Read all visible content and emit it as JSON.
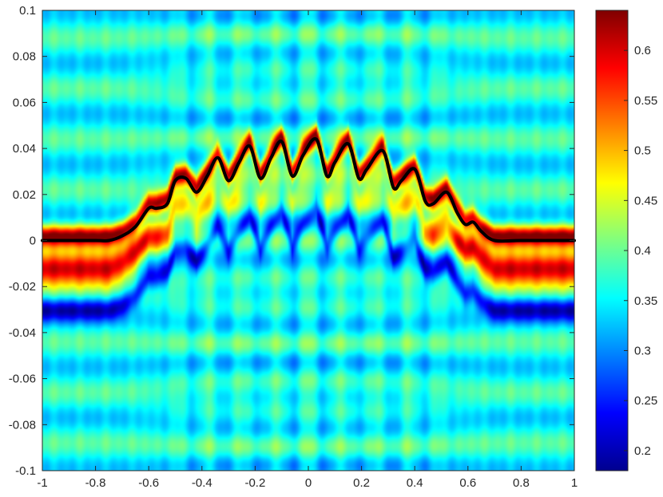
{
  "chart_data": {
    "type": "heatmap",
    "title": "",
    "xlabel": "",
    "ylabel": "",
    "xlim": [
      -1,
      1
    ],
    "ylim": [
      -0.1,
      0.1
    ],
    "x_ticks": [
      -1,
      -0.8,
      -0.6,
      -0.4,
      -0.2,
      0,
      0.2,
      0.4,
      0.6,
      0.8,
      1
    ],
    "x_tick_labels": [
      "-1",
      "-0.8",
      "-0.6",
      "-0.4",
      "-0.2",
      "0",
      "0.2",
      "0.4",
      "0.6",
      "0.8",
      "1"
    ],
    "y_ticks": [
      -0.1,
      -0.08,
      -0.06,
      -0.04,
      -0.02,
      0,
      0.02,
      0.04,
      0.06,
      0.08,
      0.1
    ],
    "y_tick_labels": [
      "-0.1",
      "-0.08",
      "-0.06",
      "-0.04",
      "-0.02",
      "0",
      "0.02",
      "0.04",
      "0.06",
      "0.08",
      "0.1"
    ],
    "colormap": "jet",
    "colorbar": {
      "range": [
        0.18,
        0.64
      ],
      "ticks": [
        0.2,
        0.25,
        0.3,
        0.35,
        0.4,
        0.45,
        0.5,
        0.55,
        0.6
      ],
      "tick_labels": [
        "0.2",
        "0.25",
        "0.3",
        "0.35",
        "0.4",
        "0.45",
        "0.5",
        "0.55",
        "0.6"
      ]
    },
    "field": {
      "background_level": 0.36,
      "band_offsets_below_surface": [
        0.002,
        -0.012,
        -0.03
      ],
      "band_values": [
        0.62,
        0.64,
        0.22
      ],
      "ripple_count_x": 16
    },
    "surface_curve": {
      "color": "#000000",
      "x": [
        -1,
        -0.8,
        -0.75,
        -0.7,
        -0.65,
        -0.6,
        -0.57,
        -0.53,
        -0.5,
        -0.46,
        -0.42,
        -0.38,
        -0.34,
        -0.3,
        -0.26,
        -0.22,
        -0.18,
        -0.14,
        -0.1,
        -0.06,
        -0.02,
        0.03,
        0.07,
        0.1,
        0.15,
        0.19,
        0.22,
        0.28,
        0.32,
        0.35,
        0.4,
        0.44,
        0.47,
        0.52,
        0.56,
        0.59,
        0.62,
        0.65,
        0.7,
        0.8,
        1
      ],
      "y": [
        0,
        0,
        0,
        0.002,
        0.006,
        0.014,
        0.014,
        0.016,
        0.026,
        0.027,
        0.021,
        0.028,
        0.036,
        0.026,
        0.034,
        0.041,
        0.027,
        0.036,
        0.043,
        0.028,
        0.037,
        0.044,
        0.028,
        0.034,
        0.042,
        0.027,
        0.031,
        0.039,
        0.023,
        0.026,
        0.031,
        0.017,
        0.016,
        0.021,
        0.012,
        0.007,
        0.008,
        0.004,
        0,
        0,
        0
      ]
    }
  }
}
